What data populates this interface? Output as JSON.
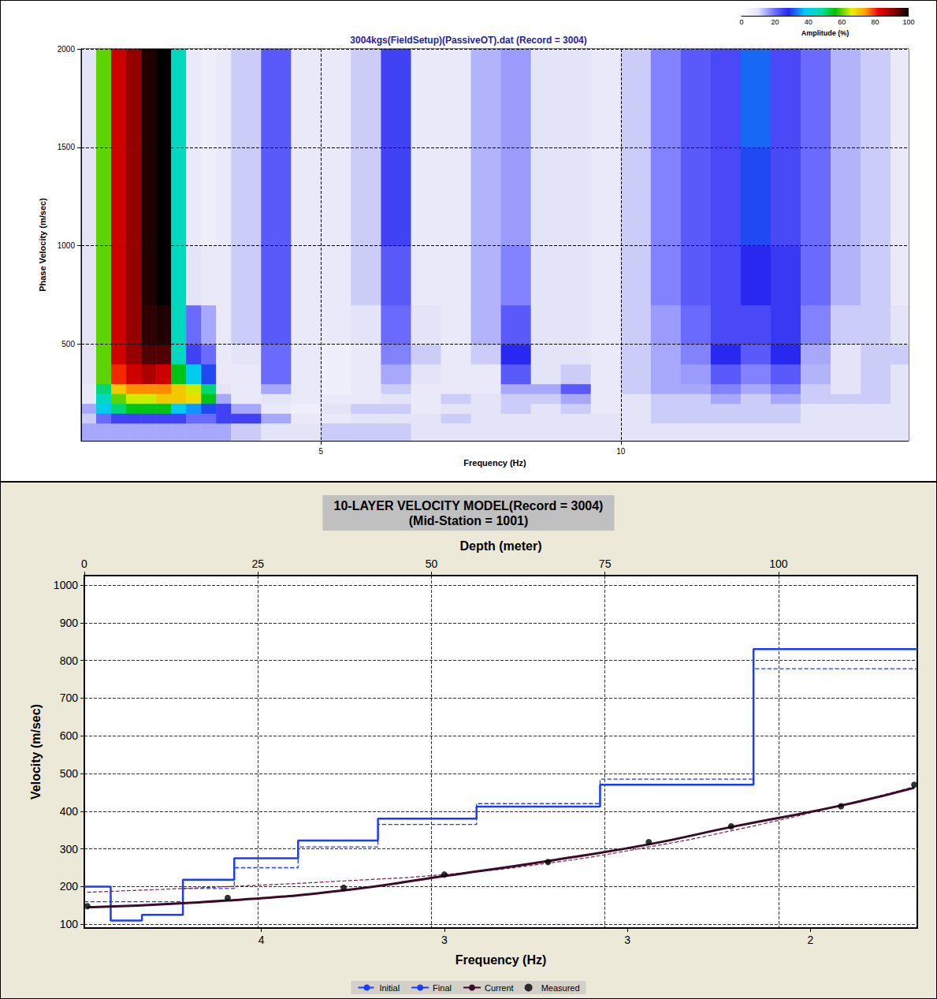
{
  "chart_data": [
    {
      "type": "heatmap",
      "title": "3004kgs(FieldSetup)(PassiveOT).dat (Record = 3004)",
      "x_label": "Frequency (Hz)",
      "y_label": "Phase Velocity (m/sec)",
      "xlim": [
        1,
        14.8
      ],
      "xticks": [
        5,
        10
      ],
      "ylim": [
        10,
        2000
      ],
      "yticks": [
        500,
        1000,
        1500,
        2000
      ],
      "grid": true,
      "frequency_bins": [
        1.0,
        1.25,
        1.5,
        1.75,
        2.0,
        2.25,
        2.5,
        2.75,
        3.0,
        3.25,
        3.5,
        4.0,
        4.5,
        5.0,
        5.5,
        6.0,
        6.5,
        7.0,
        7.5,
        8.0,
        8.5,
        9.0,
        9.5,
        10.0,
        10.5,
        11.0,
        11.5,
        12.0,
        12.5,
        13.0,
        13.5,
        14.0,
        14.5,
        14.8
      ],
      "velocity_bins": [
        10,
        100,
        150,
        200,
        250,
        300,
        400,
        500,
        700,
        1000,
        1500,
        2000
      ],
      "amplitude": [
        [
          15,
          12,
          15,
          8,
          8,
          10,
          10,
          10,
          10,
          10,
          10
        ],
        [
          15,
          20,
          40,
          45,
          50,
          60,
          60,
          60,
          60,
          60,
          60
        ],
        [
          15,
          25,
          50,
          60,
          70,
          80,
          85,
          85,
          85,
          85,
          85
        ],
        [
          15,
          25,
          55,
          65,
          75,
          85,
          90,
          90,
          90,
          90,
          90
        ],
        [
          15,
          25,
          55,
          65,
          75,
          88,
          95,
          97,
          98,
          98,
          98
        ],
        [
          15,
          25,
          55,
          70,
          75,
          85,
          95,
          98,
          100,
          100,
          100
        ],
        [
          15,
          25,
          40,
          70,
          70,
          55,
          45,
          45,
          45,
          45,
          45
        ],
        [
          15,
          20,
          35,
          68,
          65,
          40,
          25,
          20,
          10,
          8,
          8
        ],
        [
          15,
          20,
          30,
          55,
          50,
          30,
          20,
          15,
          8,
          6,
          6
        ],
        [
          15,
          25,
          25,
          15,
          10,
          8,
          8,
          8,
          8,
          8,
          8
        ],
        [
          12,
          25,
          15,
          8,
          8,
          8,
          10,
          12,
          12,
          12,
          12
        ],
        [
          10,
          15,
          8,
          10,
          15,
          20,
          20,
          22,
          22,
          22,
          22
        ],
        [
          10,
          8,
          6,
          8,
          8,
          8,
          8,
          8,
          8,
          8,
          8
        ],
        [
          12,
          8,
          10,
          8,
          6,
          6,
          6,
          8,
          8,
          8,
          8
        ],
        [
          12,
          10,
          12,
          8,
          8,
          8,
          8,
          10,
          12,
          12,
          12
        ],
        [
          12,
          10,
          12,
          10,
          12,
          15,
          18,
          20,
          22,
          25,
          25
        ],
        [
          10,
          10,
          8,
          8,
          8,
          10,
          12,
          10,
          8,
          8,
          8
        ],
        [
          10,
          12,
          10,
          12,
          8,
          8,
          8,
          8,
          8,
          8,
          8
        ],
        [
          10,
          10,
          10,
          10,
          8,
          8,
          12,
          14,
          14,
          14,
          14
        ],
        [
          10,
          10,
          12,
          12,
          15,
          22,
          28,
          22,
          18,
          16,
          16
        ],
        [
          10,
          10,
          10,
          12,
          15,
          10,
          10,
          10,
          10,
          10,
          10
        ],
        [
          10,
          10,
          12,
          15,
          22,
          12,
          10,
          10,
          10,
          10,
          10
        ],
        [
          10,
          10,
          8,
          8,
          8,
          8,
          8,
          8,
          8,
          8,
          8
        ],
        [
          10,
          10,
          10,
          10,
          12,
          12,
          12,
          12,
          12,
          12,
          12
        ],
        [
          10,
          12,
          12,
          12,
          15,
          15,
          15,
          16,
          18,
          18,
          18
        ],
        [
          10,
          12,
          12,
          12,
          15,
          16,
          18,
          20,
          22,
          22,
          22
        ],
        [
          10,
          12,
          12,
          15,
          18,
          22,
          28,
          24,
          24,
          24,
          24
        ],
        [
          10,
          12,
          12,
          12,
          15,
          18,
          22,
          24,
          28,
          30,
          32
        ],
        [
          10,
          12,
          12,
          15,
          18,
          22,
          28,
          26,
          26,
          24,
          24
        ],
        [
          10,
          10,
          10,
          12,
          12,
          14,
          15,
          18,
          20,
          20,
          20
        ],
        [
          10,
          10,
          10,
          12,
          10,
          10,
          10,
          12,
          14,
          14,
          14
        ],
        [
          10,
          10,
          10,
          12,
          12,
          12,
          12,
          12,
          12,
          12,
          12
        ],
        [
          10,
          10,
          10,
          10,
          10,
          10,
          12,
          10,
          8,
          8,
          8
        ]
      ],
      "colorbar": {
        "label": "Amplitude (%)",
        "range": [
          0,
          100
        ],
        "ticks": [
          0,
          20,
          40,
          60,
          80,
          100
        ]
      }
    },
    {
      "type": "line",
      "title": "10-LAYER VELOCITY MODEL(Record = 3004)",
      "subtitle": "(Mid-Station = 1001)",
      "x_label": "Depth (meter)",
      "xlim": [
        0,
        120
      ],
      "xticks": [
        0,
        25,
        50,
        75,
        100
      ],
      "x2_label": "Frequency (Hz)",
      "x2lim": [
        4.58,
        1.85
      ],
      "x2ticks": [
        4,
        {
          "value": 3.4,
          "label": "3"
        },
        {
          "value": 2.8,
          "label": "3"
        },
        {
          "value": 2.2,
          "label": "2"
        }
      ],
      "y_label": "Velocity (m/sec)",
      "ylim": [
        90,
        1025
      ],
      "yticks": [
        100,
        200,
        300,
        400,
        500,
        600,
        700,
        800,
        900,
        1000
      ],
      "grid": true,
      "legend": "bottom",
      "series": [
        {
          "name": "Initial",
          "type": "step",
          "axis": "x",
          "line_style": "dashed",
          "color": "#1a3cff",
          "x": [
            0,
            3.8,
            8.3,
            14.2,
            21.6,
            30.8,
            42.3,
            56.5,
            74.3,
            96.4
          ],
          "values": [
            160,
            160,
            160,
            195,
            250,
            305,
            365,
            420,
            485,
            778
          ]
        },
        {
          "name": "Final",
          "type": "step",
          "axis": "x",
          "line_style": "solid",
          "color": "#1a3cff",
          "x": [
            0,
            3.8,
            8.3,
            14.2,
            21.6,
            30.8,
            42.3,
            56.5,
            74.3,
            96.4
          ],
          "values": [
            200,
            110,
            125,
            218,
            275,
            322,
            380,
            412,
            470,
            830
          ]
        },
        {
          "name": "Initial",
          "type": "line",
          "axis": "x2",
          "line_style": "dashed",
          "color": "#7a2050",
          "x": [
            4.57,
            4.11,
            3.73,
            3.4,
            3.06,
            2.73,
            2.46,
            2.1,
            1.86
          ],
          "values": [
            185,
            200,
            215,
            232,
            262,
            305,
            348,
            415,
            465
          ]
        },
        {
          "name": "Current",
          "type": "line",
          "axis": "x2",
          "line_style": "solid",
          "color": "#3a0a28",
          "x": [
            4.57,
            4.11,
            3.73,
            3.4,
            3.06,
            2.73,
            2.46,
            2.1,
            1.86
          ],
          "values": [
            145,
            163,
            190,
            228,
            268,
            312,
            358,
            415,
            462
          ]
        },
        {
          "name": "Measured",
          "type": "scatter",
          "axis": "x2",
          "marker": "circle",
          "color": "#000000",
          "x": [
            4.57,
            4.11,
            3.73,
            3.4,
            3.06,
            2.73,
            2.46,
            2.1,
            1.86
          ],
          "values": [
            148,
            170,
            197,
            232,
            265,
            318,
            360,
            413,
            470
          ]
        }
      ]
    }
  ]
}
